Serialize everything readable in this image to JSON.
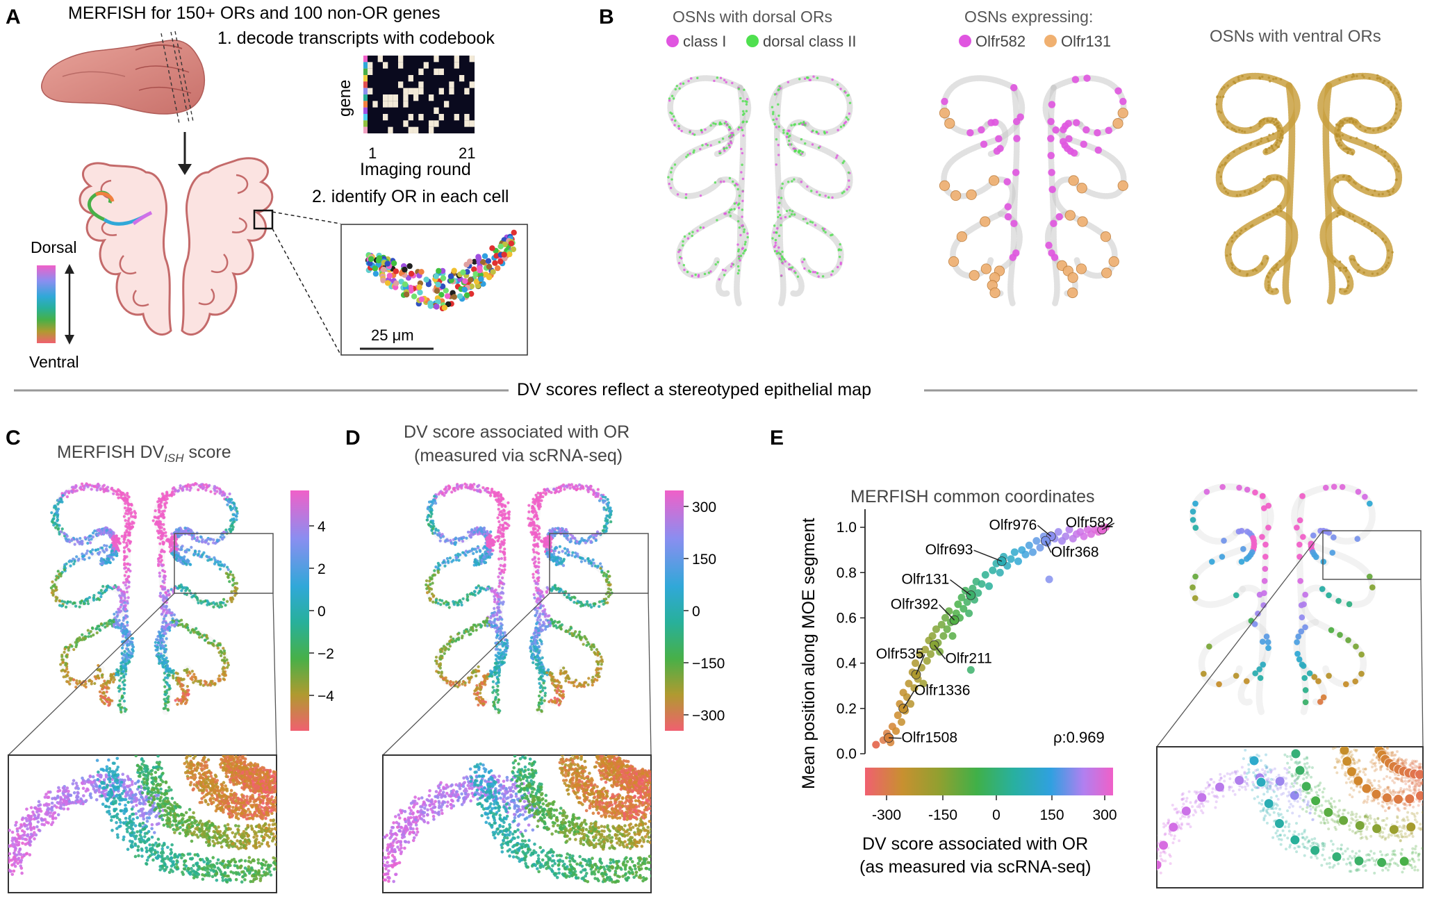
{
  "panels": {
    "A": {
      "letter": "A",
      "title": "MERFISH for 150+ ORs and 100 non-OR genes",
      "step1": "1. decode transcripts with codebook",
      "step2": "2. identify OR in each cell",
      "codebook_ylabel": "gene",
      "codebook_xtick_start": "1",
      "codebook_xtick_end": "21",
      "codebook_xlabel": "Imaging round",
      "dorsal_label": "Dorsal",
      "ventral_label": "Ventral",
      "scalebar_label": "25 μm"
    },
    "B": {
      "letter": "B",
      "map1_title": "OSNs with dorsal ORs",
      "map1_legend": [
        {
          "label": "class I",
          "color": "#e055e0"
        },
        {
          "label": "dorsal class II",
          "color": "#4fe04f"
        }
      ],
      "map2_title": "OSNs expressing:",
      "map2_legend": [
        {
          "label": "Olfr582",
          "color": "#e055e0"
        },
        {
          "label": "Olfr131",
          "color": "#f0b070"
        }
      ],
      "map3_title": "OSNs with ventral ORs"
    },
    "divider_text": "DV scores reflect a stereotyped epithelial map",
    "C": {
      "letter": "C",
      "title_main": "MERFISH DV",
      "title_sub": "ISH",
      "title_tail": " score",
      "colorbar_ticks": [
        "4",
        "2",
        "0",
        "−2",
        "−4"
      ]
    },
    "D": {
      "letter": "D",
      "title_line1": "DV score associated with OR",
      "title_line2": "(measured via scRNA-seq)",
      "colorbar_ticks": [
        "300",
        "150",
        "0",
        "−150",
        "−300"
      ]
    },
    "E": {
      "letter": "E",
      "plot_title": "MERFISH common coordinates",
      "ylabel": "Mean position along MOE segment",
      "xlabel_line1": "DV score associated with OR",
      "xlabel_line2": "(as measured via scRNA-seq)",
      "rho_label": "ρ:0.969",
      "colorbar_ticks": [
        "-300",
        "-150",
        "0",
        "150",
        "300"
      ]
    }
  },
  "colors": {
    "dv_gradient": [
      "#f06070",
      "#d08a2a",
      "#9aa030",
      "#48b048",
      "#28b09a",
      "#30a8d8",
      "#8a8ef0",
      "#d070e8",
      "#f060c8"
    ],
    "osn_gray": "#c8c8c8",
    "tissue_fill": "#fbe3e1",
    "tissue_stroke": "#c46a6a",
    "ventral_gold": "#c9a040"
  },
  "chart_data": {
    "type": "scatter",
    "title": "MERFISH common coordinates",
    "xlabel": "DV score associated with OR (as measured via scRNA-seq)",
    "ylabel": "Mean position along MOE segment",
    "xlim": [
      -350,
      330
    ],
    "ylim": [
      0,
      1.08
    ],
    "yticks": [
      0.0,
      0.2,
      0.4,
      0.6,
      0.8,
      1.0
    ],
    "annotation": "ρ:0.969",
    "labeled_points": [
      {
        "name": "Olfr1508",
        "x": -285,
        "y": 0.07
      },
      {
        "name": "Olfr1336",
        "x": -245,
        "y": 0.2
      },
      {
        "name": "Olfr535",
        "x": -210,
        "y": 0.35
      },
      {
        "name": "Olfr211",
        "x": -160,
        "y": 0.48
      },
      {
        "name": "Olfr392",
        "x": -105,
        "y": 0.59
      },
      {
        "name": "Olfr131",
        "x": -60,
        "y": 0.7
      },
      {
        "name": "Olfr693",
        "x": 25,
        "y": 0.85
      },
      {
        "name": "Olfr976",
        "x": 160,
        "y": 0.96
      },
      {
        "name": "Olfr368",
        "x": 145,
        "y": 0.94
      },
      {
        "name": "Olfr582",
        "x": 300,
        "y": 0.99
      }
    ],
    "points": [
      [
        -320,
        0.04
      ],
      [
        -300,
        0.06
      ],
      [
        -290,
        0.09
      ],
      [
        -280,
        0.05
      ],
      [
        -275,
        0.12
      ],
      [
        -265,
        0.1
      ],
      [
        -260,
        0.17
      ],
      [
        -255,
        0.22
      ],
      [
        -250,
        0.14
      ],
      [
        -245,
        0.27
      ],
      [
        -240,
        0.19
      ],
      [
        -235,
        0.25
      ],
      [
        -230,
        0.31
      ],
      [
        -225,
        0.22
      ],
      [
        -220,
        0.36
      ],
      [
        -215,
        0.29
      ],
      [
        -212,
        0.4
      ],
      [
        -205,
        0.33
      ],
      [
        -200,
        0.44
      ],
      [
        -195,
        0.38
      ],
      [
        -190,
        0.31
      ],
      [
        -185,
        0.46
      ],
      [
        -180,
        0.41
      ],
      [
        -175,
        0.5
      ],
      [
        -170,
        0.44
      ],
      [
        -165,
        0.52
      ],
      [
        -160,
        0.47
      ],
      [
        -155,
        0.55
      ],
      [
        -150,
        0.49
      ],
      [
        -145,
        0.45
      ],
      [
        -140,
        0.57
      ],
      [
        -135,
        0.52
      ],
      [
        -130,
        0.6
      ],
      [
        -125,
        0.55
      ],
      [
        -120,
        0.63
      ],
      [
        -115,
        0.58
      ],
      [
        -110,
        0.52
      ],
      [
        -100,
        0.62
      ],
      [
        -95,
        0.66
      ],
      [
        -90,
        0.6
      ],
      [
        -85,
        0.69
      ],
      [
        -80,
        0.64
      ],
      [
        -75,
        0.72
      ],
      [
        -70,
        0.67
      ],
      [
        -65,
        0.62
      ],
      [
        -55,
        0.73
      ],
      [
        -50,
        0.68
      ],
      [
        -45,
        0.76
      ],
      [
        -40,
        0.71
      ],
      [
        -30,
        0.75
      ],
      [
        -20,
        0.79
      ],
      [
        -10,
        0.74
      ],
      [
        0,
        0.81
      ],
      [
        10,
        0.84
      ],
      [
        20,
        0.8
      ],
      [
        30,
        0.87
      ],
      [
        40,
        0.83
      ],
      [
        50,
        0.86
      ],
      [
        60,
        0.89
      ],
      [
        70,
        0.85
      ],
      [
        80,
        0.9
      ],
      [
        90,
        0.88
      ],
      [
        100,
        0.92
      ],
      [
        110,
        0.89
      ],
      [
        120,
        0.94
      ],
      [
        130,
        0.91
      ],
      [
        140,
        0.96
      ],
      [
        150,
        0.93
      ],
      [
        155,
        0.77
      ],
      [
        170,
        0.95
      ],
      [
        180,
        0.98
      ],
      [
        190,
        0.94
      ],
      [
        200,
        0.96
      ],
      [
        210,
        0.99
      ],
      [
        220,
        0.95
      ],
      [
        230,
        0.97
      ],
      [
        240,
        0.98
      ],
      [
        250,
        0.96
      ],
      [
        260,
        0.99
      ],
      [
        270,
        0.97
      ],
      [
        280,
        0.99
      ],
      [
        290,
        0.98
      ],
      [
        310,
        1.0
      ],
      [
        -60,
        0.37
      ],
      [
        -320,
        0.04
      ]
    ]
  }
}
